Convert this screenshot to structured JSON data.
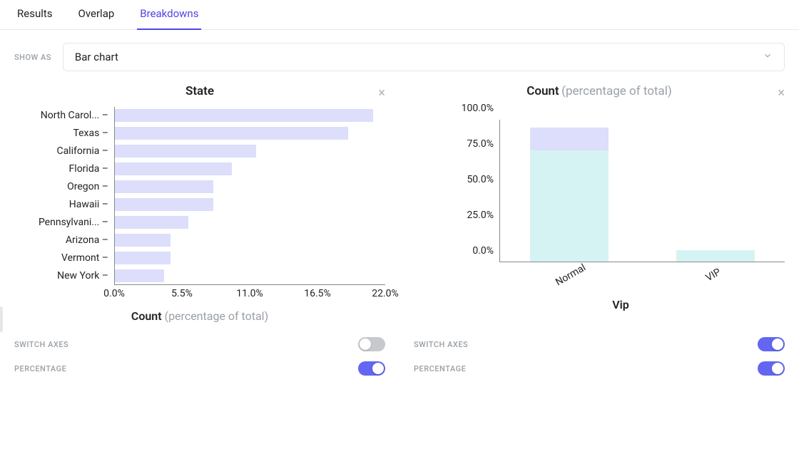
{
  "tabs": {
    "items": [
      "Results",
      "Overlap",
      "Breakdowns"
    ],
    "active_index": 2,
    "active_color": "#4f46e5"
  },
  "show_as": {
    "label": "SHOW AS",
    "value": "Bar chart"
  },
  "panels": {
    "state": {
      "title": "State",
      "type": "horizontal-bar",
      "bar_color": "#dcdefb",
      "axis_color": "#888888",
      "categories": [
        "North Carol...",
        "Texas",
        "California",
        "Florida",
        "Oregon",
        "Hawaii",
        "Pennsylvani...",
        "Arizona",
        "Vermont",
        "New York"
      ],
      "values": [
        21.0,
        19.0,
        11.5,
        9.5,
        8.0,
        8.0,
        6.0,
        4.5,
        4.5,
        4.0
      ],
      "xmax": 22.0,
      "xticks": [
        0.0,
        5.5,
        11.0,
        16.5,
        22.0
      ],
      "xtick_labels": [
        "0.0%",
        "5.5%",
        "11.0%",
        "16.5%",
        "22.0%"
      ],
      "xlabel_main": "Count",
      "xlabel_sub": "(percentage of total)"
    },
    "vip": {
      "title_main": "Count",
      "title_sub": "(percentage of total)",
      "type": "vertical-stacked-bar",
      "axis_color": "#888888",
      "series_colors": [
        "#d6f3f3",
        "#dcdefb"
      ],
      "categories": [
        "Normal",
        "VIP"
      ],
      "stacks": [
        [
          78.0,
          16.0
        ],
        [
          8.0,
          0.0
        ]
      ],
      "ymax": 100.0,
      "yticks": [
        0.0,
        25.0,
        50.0,
        75.0,
        100.0
      ],
      "ytick_labels": [
        "0.0%",
        "25.0%",
        "50.0%",
        "75.0%",
        "100.0%"
      ],
      "xlabel": "Vip"
    }
  },
  "controls": {
    "switch_axes_label": "SWITCH AXES",
    "percentage_label": "PERCENTAGE",
    "left": {
      "switch_axes": false,
      "percentage": true
    },
    "right": {
      "switch_axes": true,
      "percentage": true
    },
    "toggle_on_color": "#6366f1",
    "toggle_off_color": "#c7c9cc"
  }
}
